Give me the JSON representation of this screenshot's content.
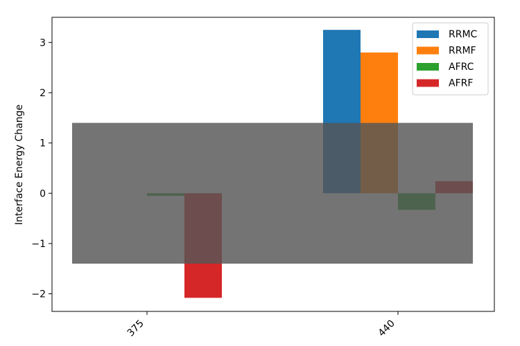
{
  "chart_data": {
    "type": "bar",
    "title": "",
    "xlabel": "",
    "ylabel": "Interface Energy Change",
    "categories": [
      "375",
      "440"
    ],
    "series": [
      {
        "name": "RRMC",
        "color": "#1f77b4",
        "values": [
          0.0,
          3.25
        ]
      },
      {
        "name": "RRMF",
        "color": "#ff7f0e",
        "values": [
          0.0,
          2.8
        ]
      },
      {
        "name": "AFRC",
        "color": "#2ca02c",
        "values": [
          -0.05,
          -0.33
        ]
      },
      {
        "name": "AFRF",
        "color": "#d62728",
        "values": [
          -2.08,
          0.24
        ]
      }
    ],
    "ylim": [
      -2.35,
      3.5
    ],
    "yticks": [
      "−2",
      "−1",
      "0",
      "1",
      "2",
      "3"
    ],
    "ytick_values": [
      -2,
      -1,
      0,
      1,
      2,
      3
    ],
    "shaded_band": {
      "y_from": -1.4,
      "y_to": 1.4,
      "color": "#555555",
      "opacity": 0.82
    },
    "legend_position": "top-right",
    "grid": false
  }
}
